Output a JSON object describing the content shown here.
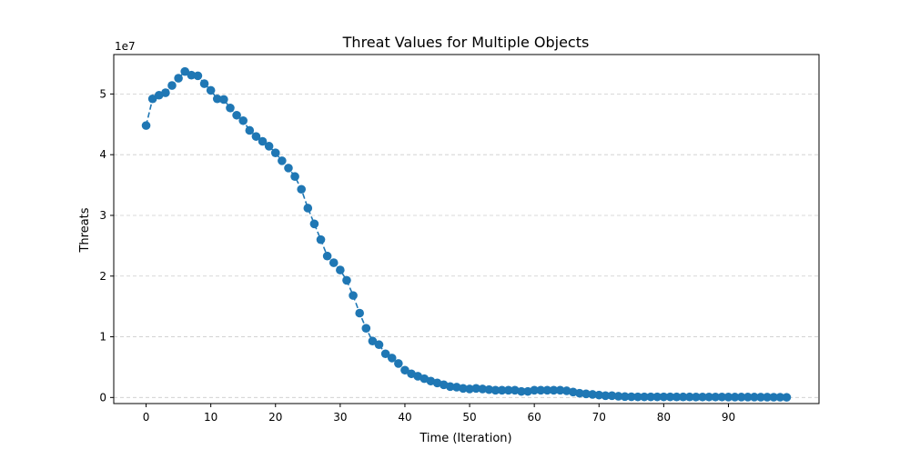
{
  "chart_data": {
    "type": "line",
    "title": "Threat Values for Multiple Objects",
    "xlabel": "Time (Iteration)",
    "ylabel": "Threats",
    "y_offset_label": "1e7",
    "xlim": [
      -5,
      104
    ],
    "ylim": [
      -1000000,
      56500000
    ],
    "x_ticks": [
      0,
      10,
      20,
      30,
      40,
      50,
      60,
      70,
      80,
      90
    ],
    "x_tick_labels": [
      "0",
      "10",
      "20",
      "30",
      "40",
      "50",
      "60",
      "70",
      "80",
      "90"
    ],
    "y_ticks": [
      0,
      10000000,
      20000000,
      30000000,
      40000000,
      50000000
    ],
    "y_tick_labels": [
      "0",
      "1",
      "2",
      "3",
      "4",
      "5"
    ],
    "grid": "y-dashed",
    "colors": {
      "series": "#1f77b4",
      "grid": "#cccccc"
    },
    "series": [
      {
        "style": "dashed-line-with-circle-markers",
        "x": [
          0,
          1,
          2,
          3,
          4,
          5,
          6,
          7,
          8,
          9,
          10,
          11,
          12,
          13,
          14,
          15,
          16,
          17,
          18,
          19,
          20,
          21,
          22,
          23,
          24,
          25,
          26,
          27,
          28,
          29,
          30,
          31,
          32,
          33,
          34,
          35,
          36,
          37,
          38,
          39,
          40,
          41,
          42,
          43,
          44,
          45,
          46,
          47,
          48,
          49,
          50,
          51,
          52,
          53,
          54,
          55,
          56,
          57,
          58,
          59,
          60,
          61,
          62,
          63,
          64,
          65,
          66,
          67,
          68,
          69,
          70,
          71,
          72,
          73,
          74,
          75,
          76,
          77,
          78,
          79,
          80,
          81,
          82,
          83,
          84,
          85,
          86,
          87,
          88,
          89,
          90,
          91,
          92,
          93,
          94,
          95,
          96,
          97,
          98,
          99
        ],
        "values": [
          44800000,
          49200000,
          49800000,
          50200000,
          51400000,
          52600000,
          53700000,
          53100000,
          53000000,
          51700000,
          50600000,
          49200000,
          49100000,
          47700000,
          46500000,
          45600000,
          44000000,
          43000000,
          42200000,
          41400000,
          40300000,
          39000000,
          37800000,
          36400000,
          34300000,
          31200000,
          28600000,
          26000000,
          23300000,
          22200000,
          21000000,
          19300000,
          16800000,
          13900000,
          11400000,
          9300000,
          8700000,
          7200000,
          6500000,
          5600000,
          4500000,
          3900000,
          3500000,
          3100000,
          2700000,
          2400000,
          2100000,
          1800000,
          1700000,
          1500000,
          1400000,
          1500000,
          1400000,
          1300000,
          1200000,
          1200000,
          1200000,
          1200000,
          1000000,
          1000000,
          1200000,
          1200000,
          1200000,
          1200000,
          1200000,
          1100000,
          900000,
          700000,
          600000,
          500000,
          400000,
          300000,
          300000,
          200000,
          150000,
          120000,
          100000,
          100000,
          100000,
          100000,
          100000,
          100000,
          90000,
          90000,
          90000,
          80000,
          80000,
          80000,
          80000,
          80000,
          70000,
          70000,
          70000,
          70000,
          70000,
          60000,
          60000,
          50000,
          50000,
          30000
        ]
      }
    ]
  }
}
